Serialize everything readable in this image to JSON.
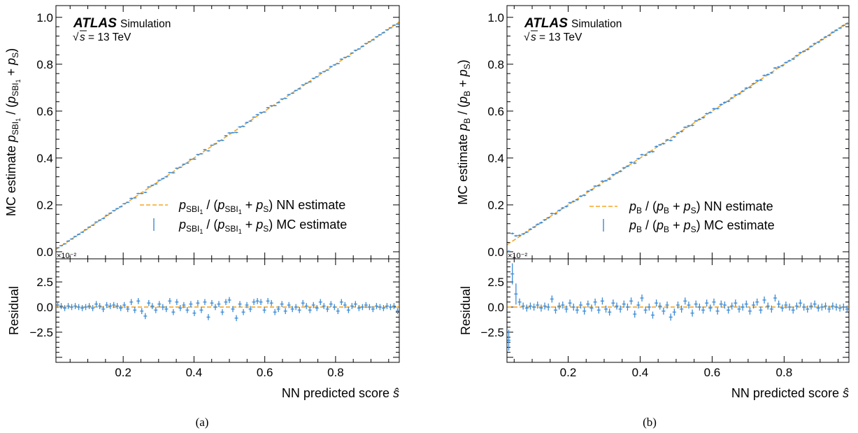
{
  "colors": {
    "mc": "#3a8ad6",
    "nn": "#f5a623",
    "axis": "#000000"
  },
  "panels": [
    {
      "caption": "(a)",
      "atlas": "ATLAS",
      "sim": "Simulation",
      "energy": "= 13 TeV",
      "ylabel_top": {
        "lead": "MC estimate ",
        "p": "p",
        "sub": "SBI",
        "subsub": "1",
        "rest": " / (",
        "p2": "p",
        "sub2": "SBI",
        "subsub2": "1",
        "plus": " + ",
        "p3": "p",
        "sub3": "S",
        "close": ")"
      },
      "ylabel_bottom": "Residual",
      "xlabel": "NN predicted score ",
      "xlabel_sym": "ŝ",
      "exp_label": "×10⁻²",
      "legend": [
        {
          "kind": "nn",
          "p": "p",
          "sub": "SBI",
          "subsub": "1",
          "mid": " / (",
          "p2": "p",
          "sub2": "SBI",
          "subsub2": "1",
          "plus": " + ",
          "p3": "p",
          "sub3": "S",
          "tail": ") NN estimate"
        },
        {
          "kind": "mc",
          "p": "p",
          "sub": "SBI",
          "subsub": "1",
          "mid": " / (",
          "p2": "p",
          "sub2": "SBI",
          "subsub2": "1",
          "plus": " + ",
          "p3": "p",
          "sub3": "S",
          "tail": ") MC estimate"
        }
      ],
      "top_yticks": [
        "0.0",
        "0.2",
        "0.4",
        "0.6",
        "0.8",
        "1.0"
      ],
      "bottom_yticks": [
        "2.5",
        "0.0",
        "−2.5"
      ],
      "xticks": [
        "0.2",
        "0.4",
        "0.6",
        "0.8"
      ]
    },
    {
      "caption": "(b)",
      "atlas": "ATLAS",
      "sim": "Simulation",
      "energy": "= 13 TeV",
      "ylabel_top": {
        "lead": "MC estimate ",
        "p": "p",
        "sub": "B",
        "subsub": "",
        "rest": " / (",
        "p2": "p",
        "sub2": "B",
        "subsub2": "",
        "plus": " + ",
        "p3": "p",
        "sub3": "S",
        "close": ")"
      },
      "ylabel_bottom": "Residual",
      "xlabel": "NN predicted score ",
      "xlabel_sym": "ŝ",
      "exp_label": "×10⁻²",
      "legend": [
        {
          "kind": "nn",
          "p": "p",
          "sub": "B",
          "subsub": "",
          "mid": " / (",
          "p2": "p",
          "sub2": "B",
          "subsub2": "",
          "plus": " + ",
          "p3": "p",
          "sub3": "S",
          "tail": ") NN estimate"
        },
        {
          "kind": "mc",
          "p": "p",
          "sub": "B",
          "subsub": "",
          "mid": " / (",
          "p2": "p",
          "sub2": "B",
          "subsub2": "",
          "plus": " + ",
          "p3": "p",
          "sub3": "S",
          "tail": ") MC estimate"
        }
      ],
      "top_yticks": [
        "0.0",
        "0.2",
        "0.4",
        "0.6",
        "0.8",
        "1.0"
      ],
      "bottom_yticks": [
        "2.5",
        "0.0",
        "−2.5"
      ],
      "xticks": [
        "0.2",
        "0.4",
        "0.6",
        "0.8"
      ]
    }
  ],
  "chart_data": [
    {
      "type": "scatter",
      "panel": "(a) top",
      "xlim": [
        0.01,
        0.98
      ],
      "ylim": [
        -0.03,
        1.05
      ],
      "xlabel": "NN predicted score ŝ",
      "ylabel": "MC estimate pSBI1 / (pSBI1 + pS)",
      "legend_position": "center-right",
      "series": [
        {
          "name": "pSBI1 / (pSBI1 + pS) NN estimate",
          "style": "dashed-line",
          "x": [
            0.01,
            0.98
          ],
          "y": [
            0.01,
            0.98
          ]
        },
        {
          "name": "pSBI1 / (pSBI1 + pS) MC estimate",
          "style": "errorbar",
          "x_range": [
            0.015,
            0.975
          ],
          "n_points": 98,
          "y_follows": "x + residual × 0.01",
          "y_err_approx": 0.003
        }
      ]
    },
    {
      "type": "scatter",
      "panel": "(a) residual",
      "xlim": [
        0.01,
        0.98
      ],
      "ylim": [
        -5.5,
        4.8
      ],
      "ylabel": "Residual",
      "y_unit_multiplier": "×10⁻²",
      "series": [
        {
          "name": "NN residual",
          "style": "dashed-line",
          "x": [
            0.01,
            0.98
          ],
          "y": [
            0,
            0
          ]
        },
        {
          "name": "MC residual",
          "style": "errorbar",
          "x_range": [
            0.015,
            0.975
          ],
          "n_points": 98,
          "y_err_approx": 0.3,
          "y": [
            0.2,
            0.1,
            -0.1,
            0.1,
            0.0,
            0.1,
            0.0,
            -0.1,
            0.0,
            0.1,
            -0.1,
            0.3,
            0.1,
            -0.2,
            0.2,
            0.1,
            0.2,
            0.1,
            -0.1,
            0.2,
            -0.2,
            0.5,
            -0.3,
            0.6,
            -0.4,
            -0.9,
            0.4,
            0.1,
            -0.3,
            0.3,
            0.0,
            -0.2,
            0.6,
            -0.5,
            0.5,
            -0.1,
            0.2,
            -0.3,
            0.3,
            -0.6,
            0.4,
            -0.3,
            0.5,
            -1.0,
            0.4,
            0.0,
            0.3,
            -0.5,
            0.5,
            0.7,
            -0.2,
            -1.1,
            0.3,
            -0.5,
            0.2,
            -0.2,
            0.5,
            0.6,
            0.5,
            -0.3,
            0.6,
            0.4,
            -0.5,
            -0.2,
            0.3,
            -0.4,
            0.2,
            -0.2,
            0.0,
            -0.3,
            0.4,
            0.1,
            -0.3,
            0.2,
            -0.1,
            0.5,
            0.1,
            -0.2,
            0.3,
            0.0,
            -0.4,
            0.5,
            0.2,
            -0.3,
            0.1,
            0.3,
            -0.1,
            0.0,
            0.2,
            0.0,
            -0.2,
            0.1,
            0.0,
            -0.1,
            0.1,
            0.0,
            0.1,
            -0.4
          ]
        }
      ]
    },
    {
      "type": "scatter",
      "panel": "(b) top",
      "xlim": [
        0.03,
        0.98
      ],
      "ylim": [
        -0.03,
        1.05
      ],
      "xlabel": "NN predicted score ŝ",
      "ylabel": "MC estimate pB / (pB + pS)",
      "legend_position": "center-right",
      "series": [
        {
          "name": "pB / (pB + pS) NN estimate",
          "style": "dashed-line",
          "x": [
            0.03,
            0.98
          ],
          "y": [
            0.03,
            0.98
          ]
        },
        {
          "name": "pB / (pB + pS) MC estimate",
          "style": "errorbar",
          "x_range": [
            0.035,
            0.975
          ],
          "n_points": 95,
          "y_follows": "x + residual × 0.01",
          "y_err_approx": 0.004
        }
      ]
    },
    {
      "type": "scatter",
      "panel": "(b) residual",
      "xlim": [
        0.03,
        0.98
      ],
      "ylim": [
        -5.5,
        4.8
      ],
      "ylabel": "Residual",
      "y_unit_multiplier": "×10⁻²",
      "series": [
        {
          "name": "NN residual",
          "style": "dashed-line",
          "x": [
            0.03,
            0.98
          ],
          "y": [
            0,
            0
          ]
        },
        {
          "name": "MC residual",
          "style": "errorbar",
          "x_range": [
            0.035,
            0.975
          ],
          "n_points": 95,
          "y_err_approx": 0.35,
          "y": [
            -3.3,
            3.3,
            1.3,
            0.5,
            0.1,
            -0.1,
            0.1,
            0.0,
            0.2,
            -0.1,
            0.1,
            0.0,
            0.8,
            -0.3,
            0.1,
            0.2,
            -0.2,
            0.4,
            0.0,
            -0.3,
            0.2,
            -0.4,
            0.3,
            -0.1,
            0.5,
            -0.3,
            0.6,
            -0.2,
            -0.5,
            0.4,
            0.1,
            -0.2,
            0.3,
            0.0,
            0.6,
            -0.7,
            0.2,
            0.9,
            -0.3,
            0.0,
            -0.8,
            0.4,
            0.1,
            -0.4,
            0.2,
            -1.0,
            -0.5,
            0.2,
            -0.2,
            0.6,
            0.2,
            -0.6,
            0.3,
            0.0,
            -0.3,
            0.4,
            -0.1,
            0.5,
            -0.4,
            0.3,
            0.2,
            -0.3,
            0.1,
            0.4,
            -0.2,
            0.0,
            0.3,
            -0.4,
            0.2,
            0.5,
            -0.3,
            0.7,
            0.1,
            -0.2,
            0.9,
            0.3,
            -0.1,
            0.2,
            0.0,
            -0.3,
            0.1,
            0.4,
            0.0,
            -0.2,
            0.1,
            0.3,
            -0.1,
            0.0,
            0.1,
            -0.2,
            0.1,
            0.0,
            -0.1,
            0.0,
            -0.2
          ]
        }
      ]
    }
  ]
}
